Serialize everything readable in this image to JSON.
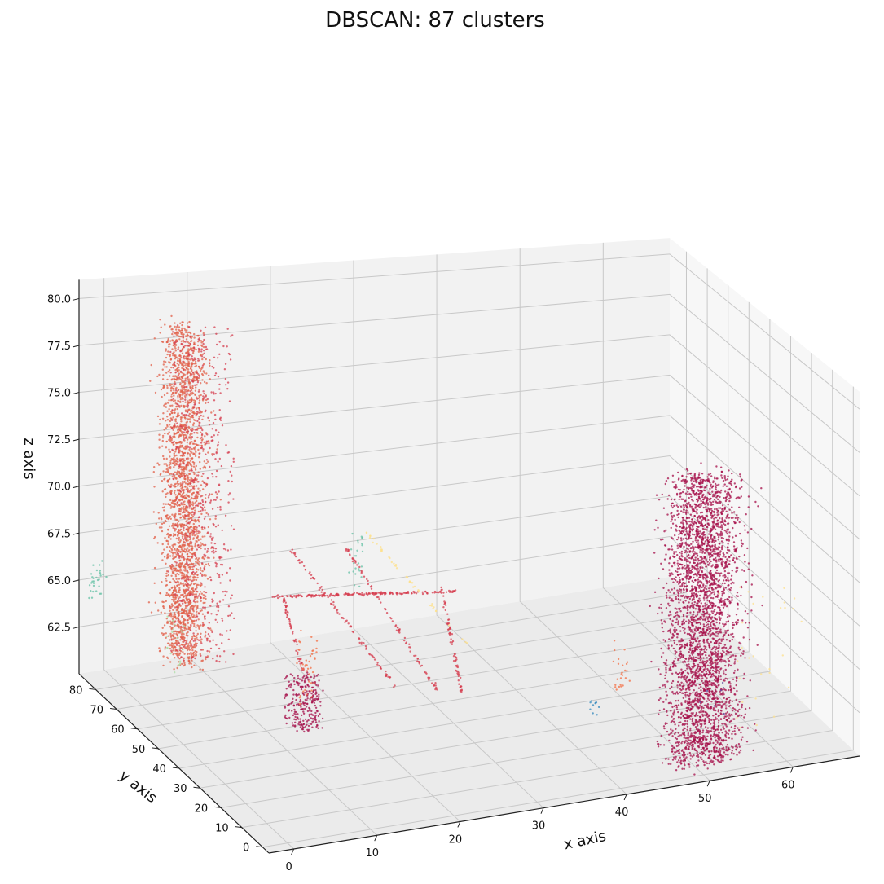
{
  "chart_data": {
    "type": "scatter",
    "title": "DBSCAN: 87 clusters",
    "xlabel": "x axis",
    "ylabel": "y axis",
    "zlabel": "z axis",
    "x_ticks": [
      "0",
      "10",
      "20",
      "30",
      "40",
      "50",
      "60"
    ],
    "y_ticks": [
      "0",
      "10",
      "20",
      "30",
      "40",
      "50",
      "60",
      "70",
      "80"
    ],
    "z_ticks": [
      "62.5",
      "65.0",
      "67.5",
      "70.0",
      "72.5",
      "75.0",
      "77.5",
      "80.0"
    ],
    "xlim": [
      -3,
      68
    ],
    "ylim": [
      -3,
      88
    ],
    "zlim": [
      60,
      81
    ],
    "grid": true,
    "projection": "3d",
    "series": [
      {
        "color": "#e2604a",
        "clusters": [
          {
            "x": [
              4,
              10
            ],
            "y": [
              68,
              88
            ],
            "z": [
              61,
              79
            ],
            "n": 2400,
            "dense": true
          }
        ]
      },
      {
        "color": "#a50f49",
        "clusters": [
          {
            "x": [
              45,
              58
            ],
            "y": [
              -2,
              14
            ],
            "z": [
              60,
              76
            ],
            "n": 3400,
            "dense": true
          },
          {
            "x": [
              14,
              18
            ],
            "y": [
              54,
              58
            ],
            "z": [
              59,
              62
            ],
            "n": 250
          }
        ]
      },
      {
        "color": "#d53e4f",
        "clusters": [
          {
            "line": [
              [
                12,
                55,
                66.5
              ],
              [
                32,
                46,
                66.5
              ]
            ],
            "n": 200
          },
          {
            "line": [
              [
                14,
                54,
                69
              ],
              [
                24,
                44,
                62
              ]
            ],
            "n": 90
          },
          {
            "line": [
              [
                20,
                52,
                69
              ],
              [
                28,
                40,
                62
              ]
            ],
            "n": 90
          },
          {
            "line": [
              [
                14,
                58,
                66
              ],
              [
                16,
                56,
                62
              ]
            ],
            "n": 60
          },
          {
            "line": [
              [
                30,
                46,
                67
              ],
              [
                32,
                44,
                61
              ]
            ],
            "n": 70
          },
          {
            "x": [
              6,
              12
            ],
            "y": [
              72,
              82
            ],
            "z": [
              61,
              79
            ],
            "n": 600
          }
        ]
      },
      {
        "color": "#f46d43",
        "clusters": [
          {
            "x": [
              16,
              18
            ],
            "y": [
              56,
              60
            ],
            "z": [
              60,
              64
            ],
            "n": 40
          },
          {
            "x": [
              44,
              46
            ],
            "y": [
              18,
              22
            ],
            "z": [
              63,
              66
            ],
            "n": 25
          }
        ]
      },
      {
        "color": "#fee08b",
        "clusters": [
          {
            "line": [
              [
                24,
                58,
                69
              ],
              [
                34,
                48,
                63
              ]
            ],
            "n": 45
          },
          {
            "x": [
              52,
              62
            ],
            "y": [
              -3,
              4
            ],
            "z": [
              62,
              70
            ],
            "n": 30
          }
        ]
      },
      {
        "color": "#66c2a5",
        "clusters": [
          {
            "x": [
              -2,
              0
            ],
            "y": [
              86,
              88
            ],
            "z": [
              64,
              66
            ],
            "n": 30
          },
          {
            "x": [
              22,
              24
            ],
            "y": [
              58,
              60
            ],
            "z": [
              66,
              69
            ],
            "n": 25
          }
        ]
      },
      {
        "color": "#abdda4",
        "clusters": [
          {
            "x": [
              6,
              8
            ],
            "y": [
              80,
              84
            ],
            "z": [
              60,
              63
            ],
            "n": 20
          }
        ]
      },
      {
        "color": "#3288bd",
        "clusters": [
          {
            "x": [
              40,
              42
            ],
            "y": [
              16,
              18
            ],
            "z": [
              62,
              63
            ],
            "n": 10
          }
        ]
      },
      {
        "color": "#5e4fa2",
        "clusters": [
          {
            "x": [
              52,
              56
            ],
            "y": [
              6,
              12
            ],
            "z": [
              62,
              64
            ],
            "n": 8
          }
        ]
      }
    ]
  }
}
